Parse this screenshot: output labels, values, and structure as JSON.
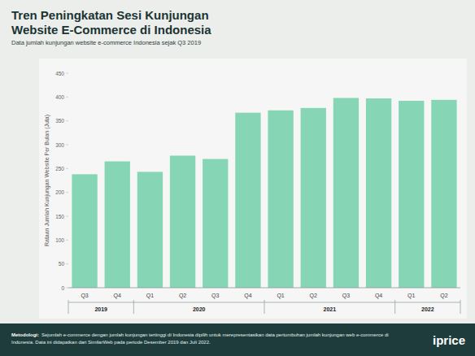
{
  "chart_data": {
    "type": "bar",
    "title": "Tren Peningkatan Sesi Kunjungan Website E-Commerce di Indonesia",
    "subtitle": "Data jumlah kunjungan website e-commerce Indonesia sejak Q3 2019",
    "y_label": "Rataan Jumlah Kunjungan Website Per Bulan (Juta)",
    "categories": [
      "Q3",
      "Q4",
      "Q1",
      "Q2",
      "Q3",
      "Q4",
      "Q1",
      "Q2",
      "Q3",
      "Q4",
      "Q1",
      "Q2"
    ],
    "x_groups": [
      {
        "label": "2019",
        "count": 2
      },
      {
        "label": "2020",
        "count": 4
      },
      {
        "label": "2021",
        "count": 4
      },
      {
        "label": "2022",
        "count": 2
      }
    ],
    "values": [
      238,
      265,
      243,
      277,
      270,
      367,
      372,
      377,
      398,
      397,
      392,
      394
    ],
    "color": "#86d6b6",
    "ylim": [
      0,
      450
    ],
    "yticks": [
      0,
      50,
      100,
      150,
      200,
      250,
      300,
      350,
      400,
      450
    ],
    "grid": false,
    "note_label": "Metodologi:",
    "note": "Sejumlah e-commerce dengan jumlah kunjungan tertinggi di Indonesia dipilih untuk merepresentasikan data pertumbuhan jumlah kunjungan web e-commerce di Indonesia. Data ini didapatkan dari SimilarWeb pada periode Desember 2019 dan Juli 2022.",
    "brand": "iprice"
  }
}
